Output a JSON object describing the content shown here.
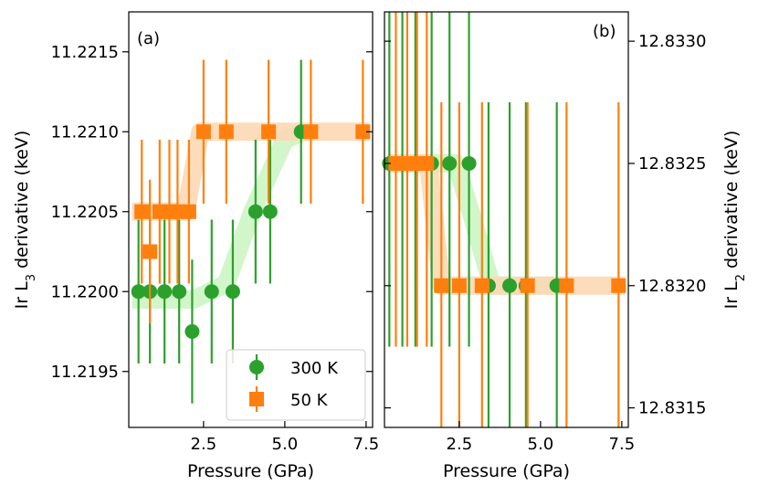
{
  "chart_data": [
    {
      "id": "a",
      "type": "scatter",
      "panel_label": "(a)",
      "xlabel": "Pressure (GPa)",
      "ylabel_main": "Ir L",
      "ylabel_sub": "3",
      "ylabel_tail": " derivative (keV)",
      "xlim": [
        0.2,
        7.7
      ],
      "ylim": [
        11.21915,
        11.22175
      ],
      "xticks": [
        2.5,
        5.0,
        7.5
      ],
      "xtick_labels": [
        "2.5",
        "5.0",
        "7.5"
      ],
      "yticks": [
        11.2195,
        11.22,
        11.2205,
        11.221,
        11.2215
      ],
      "ytick_labels": [
        "11.2195",
        "11.2200",
        "11.2205",
        "11.2210",
        "11.2215"
      ],
      "y_axis_side": "left",
      "legend": {
        "position": "lower-right",
        "entries": [
          {
            "label": "300 K",
            "color": "#2ca02c",
            "marker": "circle"
          },
          {
            "label": "50 K",
            "color": "#ff7f0e",
            "marker": "square"
          }
        ]
      },
      "series": [
        {
          "name": "300 K",
          "color": "#2ca02c",
          "marker": "circle",
          "points": [
            {
              "x": 0.5,
              "y": 11.22,
              "err": 0.00045
            },
            {
              "x": 0.85,
              "y": 11.22,
              "err": 0.00045
            },
            {
              "x": 1.3,
              "y": 11.22,
              "err": 0.00045
            },
            {
              "x": 1.75,
              "y": 11.22,
              "err": 0.00045
            },
            {
              "x": 2.15,
              "y": 11.21975,
              "err": 0.00045
            },
            {
              "x": 2.75,
              "y": 11.22,
              "err": 0.00045
            },
            {
              "x": 3.4,
              "y": 11.22,
              "err": 0.00045
            },
            {
              "x": 4.1,
              "y": 11.2205,
              "err": 0.00045
            },
            {
              "x": 4.55,
              "y": 11.2205,
              "err": 0.00045
            },
            {
              "x": 5.5,
              "y": 11.221,
              "err": 0.00045
            }
          ]
        },
        {
          "name": "50 K",
          "color": "#ff7f0e",
          "marker": "square",
          "points": [
            {
              "x": 0.6,
              "y": 11.2205,
              "err": 0.00045
            },
            {
              "x": 0.85,
              "y": 11.22025,
              "err": 0.00045
            },
            {
              "x": 1.15,
              "y": 11.2205,
              "err": 0.00045
            },
            {
              "x": 1.45,
              "y": 11.2205,
              "err": 0.00045
            },
            {
              "x": 1.7,
              "y": 11.2205,
              "err": 0.00045
            },
            {
              "x": 2.05,
              "y": 11.2205,
              "err": 0.00045
            },
            {
              "x": 2.5,
              "y": 11.221,
              "err": 0.00045
            },
            {
              "x": 3.2,
              "y": 11.221,
              "err": 0.00045
            },
            {
              "x": 4.5,
              "y": 11.221,
              "err": 0.00045
            },
            {
              "x": 5.8,
              "y": 11.221,
              "err": 0.00045
            },
            {
              "x": 7.4,
              "y": 11.221,
              "err": 0.00045
            }
          ]
        }
      ],
      "guides": [
        {
          "color": "#ccf5c4",
          "points": [
            [
              0.3,
              11.21995
            ],
            [
              2.2,
              11.21995
            ],
            [
              3.2,
              11.22005
            ],
            [
              4.0,
              11.2205
            ],
            [
              5.0,
              11.22095
            ],
            [
              5.6,
              11.221
            ]
          ]
        },
        {
          "color": "#fcd8b4",
          "points": [
            [
              0.3,
              11.2205
            ],
            [
              1.95,
              11.2205
            ],
            [
              2.4,
              11.221
            ],
            [
              7.6,
              11.221
            ]
          ]
        }
      ]
    },
    {
      "id": "b",
      "type": "scatter",
      "panel_label": "(b)",
      "xlabel": "Pressure (GPa)",
      "ylabel_main": "Ir L",
      "ylabel_sub": "2",
      "ylabel_tail": " derivative (keV)",
      "xlim": [
        0.2,
        7.7
      ],
      "ylim": [
        12.83142,
        12.83312
      ],
      "xticks": [
        2.5,
        5.0,
        7.5
      ],
      "xtick_labels": [
        "2.5",
        "5.0",
        "7.5"
      ],
      "yticks": [
        12.8315,
        12.832,
        12.8325,
        12.833
      ],
      "ytick_labels": [
        "12.8315",
        "12.8320",
        "12.8325",
        "12.8330"
      ],
      "y_axis_side": "right",
      "series": [
        {
          "name": "300 K",
          "color": "#2ca02c",
          "marker": "circle",
          "points": [
            {
              "x": 0.35,
              "y": 12.8325,
              "err": 0.00075
            },
            {
              "x": 0.75,
              "y": 12.8325,
              "err": 0.00075
            },
            {
              "x": 1.15,
              "y": 12.8325,
              "err": 0.00075
            },
            {
              "x": 1.65,
              "y": 12.8325,
              "err": 0.00075
            },
            {
              "x": 2.2,
              "y": 12.8325,
              "err": 0.00075
            },
            {
              "x": 2.8,
              "y": 12.8325,
              "err": 0.00075
            },
            {
              "x": 3.4,
              "y": 12.832,
              "err": 0.00075
            },
            {
              "x": 4.05,
              "y": 12.832,
              "err": 0.00075
            },
            {
              "x": 4.55,
              "y": 12.832,
              "err": 0.00075
            },
            {
              "x": 5.5,
              "y": 12.832,
              "err": 0.00075
            }
          ]
        },
        {
          "name": "50 K",
          "color": "#ff7f0e",
          "marker": "square",
          "points": [
            {
              "x": 0.55,
              "y": 12.8325,
              "err": 0.00075
            },
            {
              "x": 0.9,
              "y": 12.8325,
              "err": 0.00075
            },
            {
              "x": 1.2,
              "y": 12.8325,
              "err": 0.00075
            },
            {
              "x": 1.5,
              "y": 12.8325,
              "err": 0.00075
            },
            {
              "x": 1.95,
              "y": 12.832,
              "err": 0.00075
            },
            {
              "x": 2.5,
              "y": 12.832,
              "err": 0.00075
            },
            {
              "x": 3.2,
              "y": 12.832,
              "err": 0.00075
            },
            {
              "x": 4.6,
              "y": 12.832,
              "err": 0.00075
            },
            {
              "x": 5.8,
              "y": 12.832,
              "err": 0.00075
            },
            {
              "x": 7.4,
              "y": 12.832,
              "err": 0.00075
            }
          ]
        }
      ],
      "guides": [
        {
          "color": "#ccf5c4",
          "points": [
            [
              0.3,
              12.8325
            ],
            [
              2.4,
              12.8325
            ],
            [
              2.9,
              12.83228
            ],
            [
              3.5,
              12.832
            ],
            [
              5.6,
              12.832
            ]
          ]
        },
        {
          "color": "#fcd8b4",
          "points": [
            [
              0.3,
              12.8325
            ],
            [
              1.55,
              12.8325
            ],
            [
              1.95,
              12.832
            ],
            [
              7.6,
              12.832
            ]
          ]
        }
      ]
    }
  ]
}
